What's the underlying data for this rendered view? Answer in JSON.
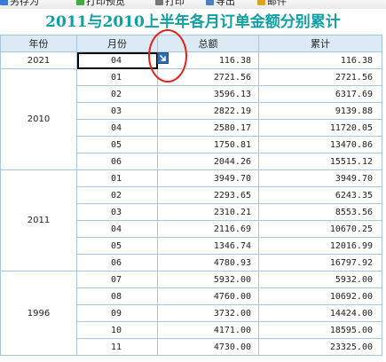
{
  "toolbar": [
    {
      "label": "另存为",
      "icon": "save-icon",
      "color": "#3a7bd5"
    },
    {
      "label": "打印预览",
      "icon": "print-preview-icon",
      "color": "#44aa44"
    },
    {
      "label": "打印",
      "icon": "print-icon",
      "color": "#777777"
    },
    {
      "label": "导出",
      "icon": "export-icon",
      "color": "#4a7fc1"
    },
    {
      "label": "邮件",
      "icon": "mail-icon",
      "color": "#d9a520"
    }
  ],
  "report": {
    "title": "2011与2010上半年各月订单金额分别累计",
    "columns": [
      "年份",
      "月份",
      "总额",
      "累计"
    ],
    "groups": [
      {
        "year": "2021",
        "rows": [
          {
            "month": "04",
            "total": "116.38",
            "cumulative": "116.38",
            "selected": true
          }
        ]
      },
      {
        "year": "2010",
        "rows": [
          {
            "month": "01",
            "total": "2721.56",
            "cumulative": "2721.56"
          },
          {
            "month": "02",
            "total": "3596.13",
            "cumulative": "6317.69"
          },
          {
            "month": "03",
            "total": "2822.19",
            "cumulative": "9139.88"
          },
          {
            "month": "04",
            "total": "2580.17",
            "cumulative": "11720.05"
          },
          {
            "month": "05",
            "total": "1750.81",
            "cumulative": "13470.86"
          },
          {
            "month": "06",
            "total": "2044.26",
            "cumulative": "15515.12"
          }
        ]
      },
      {
        "year": "2011",
        "rows": [
          {
            "month": "01",
            "total": "3949.70",
            "cumulative": "3949.70"
          },
          {
            "month": "02",
            "total": "2293.65",
            "cumulative": "6243.35"
          },
          {
            "month": "03",
            "total": "2310.21",
            "cumulative": "8553.56"
          },
          {
            "month": "04",
            "total": "2116.69",
            "cumulative": "10670.25"
          },
          {
            "month": "05",
            "total": "1346.74",
            "cumulative": "12016.99"
          },
          {
            "month": "06",
            "total": "4780.93",
            "cumulative": "16797.92"
          }
        ]
      },
      {
        "year": "1996",
        "rows": [
          {
            "month": "07",
            "total": "5932.00",
            "cumulative": "5932.00"
          },
          {
            "month": "08",
            "total": "4760.00",
            "cumulative": "10692.00"
          },
          {
            "month": "09",
            "total": "3732.00",
            "cumulative": "14424.00"
          },
          {
            "month": "10",
            "total": "4171.00",
            "cumulative": "18595.00"
          },
          {
            "month": "11",
            "total": "4730.00",
            "cumulative": "23325.00"
          }
        ]
      }
    ]
  }
}
